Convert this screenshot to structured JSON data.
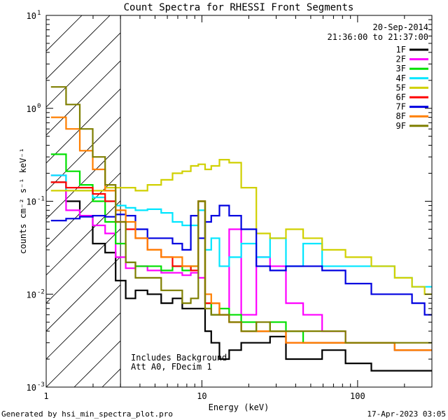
{
  "chart_data": {
    "type": "line",
    "title": "Count Spectra for RHESSI Front Segments",
    "xlabel": "Energy (keV)",
    "ylabel": "counts cm⁻² s⁻¹ keV⁻¹",
    "x_scale": "log",
    "y_scale": "log",
    "xlim": [
      1,
      300
    ],
    "ylim": [
      0.001,
      10
    ],
    "x_ticks": [
      {
        "value": 1,
        "label": "1"
      },
      {
        "value": 10,
        "label": "10"
      },
      {
        "value": 100,
        "label": "100"
      }
    ],
    "y_ticks": [
      {
        "value": 0.001,
        "base": "10",
        "exp": "-3"
      },
      {
        "value": 0.01,
        "base": "10",
        "exp": "-2"
      },
      {
        "value": 0.1,
        "base": "10",
        "exp": "-1"
      },
      {
        "value": 1,
        "base": "10",
        "exp": "0"
      },
      {
        "value": 10,
        "base": "10",
        "exp": "1"
      }
    ],
    "hatched_region": [
      1,
      3
    ],
    "date": "20-Sep-2014",
    "time_range": "21:36:00 to 21:37:00",
    "annotation_lines": [
      "Includes Background",
      "Att A0, FDecim 1"
    ],
    "legend_position": "top-right",
    "series": [
      {
        "name": "1F",
        "color": "#000000",
        "x": [
          1.2,
          1.5,
          1.8,
          2.2,
          2.6,
          3.0,
          3.5,
          4,
          5,
          6,
          7,
          8,
          9,
          10,
          11,
          12,
          14,
          16,
          20,
          25,
          30,
          40,
          50,
          70,
          100,
          150,
          200,
          250,
          290
        ],
        "y": [
          0.16,
          0.1,
          0.07,
          0.035,
          0.028,
          0.014,
          0.009,
          0.011,
          0.01,
          0.008,
          0.009,
          0.007,
          0.007,
          0.007,
          0.004,
          0.003,
          0.002,
          0.0025,
          0.003,
          0.003,
          0.0035,
          0.002,
          0.002,
          0.0025,
          0.0018,
          0.0015,
          0.0015,
          0.0015,
          0.0015
        ]
      },
      {
        "name": "2F",
        "color": "#ff00ff",
        "x": [
          1.2,
          1.5,
          1.8,
          2.2,
          2.6,
          3.0,
          3.5,
          4,
          5,
          6,
          7,
          8,
          9,
          10,
          11,
          12,
          14,
          16,
          20,
          25,
          30,
          40,
          50,
          70,
          100,
          150,
          200,
          250,
          290
        ],
        "y": [
          0.19,
          0.08,
          0.07,
          0.055,
          0.045,
          0.025,
          0.019,
          0.02,
          0.018,
          0.017,
          0.017,
          0.016,
          0.017,
          0.015,
          0.008,
          0.006,
          0.006,
          0.05,
          0.006,
          0.025,
          0.02,
          0.008,
          0.006,
          0.004,
          0.003,
          0.003,
          0.0025,
          0.0025,
          0.0025
        ]
      },
      {
        "name": "3F",
        "color": "#00e000",
        "x": [
          1.2,
          1.5,
          1.8,
          2.2,
          2.6,
          3.0,
          3.5,
          4,
          5,
          6,
          7,
          8,
          9,
          10,
          11,
          12,
          14,
          16,
          20,
          25,
          30,
          40,
          50,
          70,
          100,
          150,
          200,
          250,
          290
        ],
        "y": [
          0.32,
          0.21,
          0.15,
          0.1,
          0.06,
          0.035,
          0.022,
          0.02,
          0.02,
          0.018,
          0.02,
          0.018,
          0.02,
          0.1,
          0.008,
          0.006,
          0.007,
          0.006,
          0.005,
          0.004,
          0.005,
          0.004,
          0.003,
          0.003,
          0.003,
          0.003,
          0.0025,
          0.0025,
          0.0025
        ]
      },
      {
        "name": "4F",
        "color": "#00e6ff",
        "x": [
          1.2,
          1.5,
          1.8,
          2.2,
          2.6,
          3.0,
          3.5,
          4,
          5,
          6,
          7,
          8,
          9,
          10,
          11,
          12,
          14,
          16,
          20,
          25,
          30,
          40,
          50,
          70,
          100,
          150,
          200,
          250,
          290
        ],
        "y": [
          0.19,
          0.13,
          0.13,
          0.11,
          0.1,
          0.09,
          0.085,
          0.08,
          0.082,
          0.075,
          0.06,
          0.055,
          0.055,
          0.08,
          0.03,
          0.04,
          0.02,
          0.025,
          0.035,
          0.025,
          0.04,
          0.02,
          0.035,
          0.02,
          0.02,
          0.02,
          0.015,
          0.012,
          0.012
        ]
      },
      {
        "name": "5F",
        "color": "#d0d000",
        "x": [
          1.2,
          1.5,
          1.8,
          2.2,
          2.6,
          3.0,
          3.5,
          4,
          5,
          6,
          7,
          8,
          9,
          10,
          11,
          12,
          14,
          16,
          20,
          25,
          30,
          40,
          50,
          70,
          100,
          150,
          200,
          250,
          290
        ],
        "y": [
          0.13,
          0.13,
          0.13,
          0.13,
          0.14,
          0.14,
          0.14,
          0.13,
          0.15,
          0.17,
          0.2,
          0.21,
          0.24,
          0.25,
          0.22,
          0.24,
          0.28,
          0.26,
          0.14,
          0.045,
          0.04,
          0.05,
          0.04,
          0.03,
          0.025,
          0.02,
          0.015,
          0.012,
          0.01
        ]
      },
      {
        "name": "6F",
        "color": "#ff0000",
        "x": [
          1.2,
          1.5,
          1.8,
          2.2,
          2.6,
          3.0,
          3.5,
          4,
          5,
          6,
          7,
          8,
          9,
          10,
          11,
          12,
          14,
          16,
          20,
          25,
          30,
          40,
          50,
          70,
          100,
          150,
          200,
          250,
          290
        ],
        "y": [
          0.16,
          0.14,
          0.14,
          0.12,
          0.1,
          0.06,
          0.05,
          0.04,
          0.03,
          0.025,
          0.02,
          0.02,
          0.018,
          0.1,
          0.008,
          0.008,
          0.006,
          0.005,
          0.004,
          0.004,
          0.004,
          0.003,
          0.003,
          0.003,
          0.003,
          0.003,
          0.0025,
          0.0025,
          0.0025
        ]
      },
      {
        "name": "7F",
        "color": "#0000e0",
        "x": [
          1.2,
          1.5,
          1.8,
          2.2,
          2.6,
          3.0,
          3.5,
          4,
          5,
          6,
          7,
          8,
          9,
          10,
          11,
          12,
          14,
          16,
          20,
          25,
          30,
          40,
          50,
          70,
          100,
          150,
          200,
          250,
          290
        ],
        "y": [
          0.062,
          0.065,
          0.068,
          0.07,
          0.068,
          0.072,
          0.07,
          0.05,
          0.04,
          0.04,
          0.035,
          0.03,
          0.07,
          0.04,
          0.06,
          0.07,
          0.09,
          0.07,
          0.05,
          0.02,
          0.018,
          0.02,
          0.02,
          0.018,
          0.013,
          0.01,
          0.01,
          0.008,
          0.006
        ]
      },
      {
        "name": "8F",
        "color": "#ff7f00",
        "x": [
          1.2,
          1.5,
          1.8,
          2.2,
          2.6,
          3.0,
          3.5,
          4,
          5,
          6,
          7,
          8,
          9,
          10,
          11,
          12,
          14,
          16,
          20,
          25,
          30,
          40,
          50,
          70,
          100,
          150,
          200,
          250,
          290
        ],
        "y": [
          0.8,
          0.6,
          0.35,
          0.22,
          0.13,
          0.08,
          0.06,
          0.04,
          0.03,
          0.025,
          0.025,
          0.02,
          0.02,
          0.1,
          0.01,
          0.008,
          0.006,
          0.005,
          0.004,
          0.004,
          0.004,
          0.003,
          0.003,
          0.003,
          0.003,
          0.003,
          0.0025,
          0.0025,
          0.0025
        ]
      },
      {
        "name": "9F",
        "color": "#7f7f00",
        "x": [
          1.2,
          1.5,
          1.8,
          2.2,
          2.6,
          3.0,
          3.5,
          4,
          5,
          6,
          7,
          8,
          9,
          10,
          11,
          12,
          14,
          16,
          20,
          25,
          30,
          40,
          50,
          70,
          100,
          150,
          200,
          250,
          290
        ],
        "y": [
          1.7,
          1.1,
          0.6,
          0.3,
          0.15,
          0.06,
          0.022,
          0.015,
          0.015,
          0.011,
          0.011,
          0.008,
          0.009,
          0.1,
          0.007,
          0.006,
          0.006,
          0.005,
          0.004,
          0.005,
          0.004,
          0.004,
          0.004,
          0.004,
          0.003,
          0.003,
          0.003,
          0.003,
          0.003
        ]
      }
    ]
  },
  "footer": {
    "generated_by": "Generated by hsi_min_spectra_plot.pro",
    "timestamp": "17-Apr-2023 03:05"
  }
}
